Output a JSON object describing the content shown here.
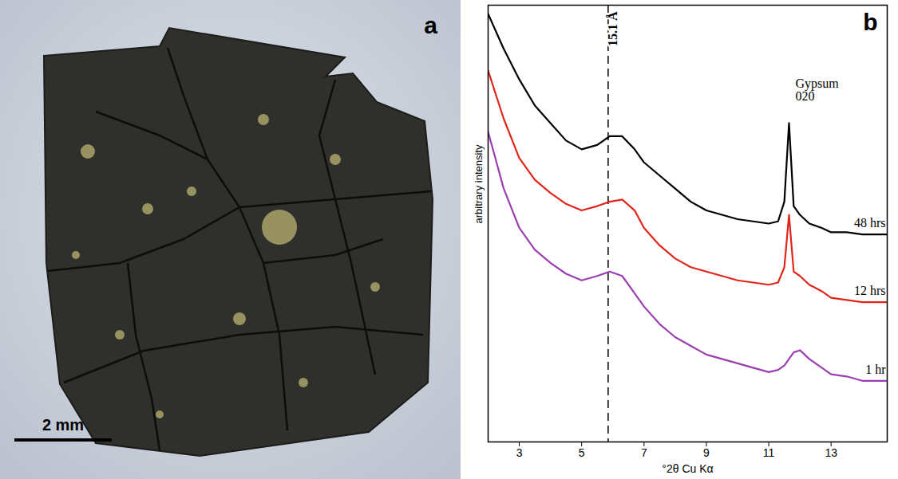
{
  "chart_data": {
    "type": "line",
    "panel_label": "b",
    "xlabel": "°2θ Cu Kα",
    "ylabel": "arbitrary intensity",
    "x": [
      2,
      2.5,
      3,
      3.5,
      4,
      4.5,
      5,
      5.5,
      5.9,
      6.3,
      6.7,
      7,
      7.5,
      8,
      8.5,
      9,
      9.5,
      10,
      10.5,
      11,
      11.3,
      11.5,
      11.65,
      11.8,
      12,
      12.3,
      12.7,
      13,
      13.5,
      14,
      14.8
    ],
    "series": [
      {
        "name": "48 hrs",
        "color": "#000000",
        "values": [
          98,
          90,
          83,
          77,
          73,
          69,
          67,
          68,
          70,
          70,
          67,
          64,
          61,
          58,
          55,
          53,
          52,
          51,
          50.5,
          50,
          50.5,
          55,
          73,
          54,
          52,
          50,
          49,
          48,
          48,
          47.5,
          47.5
        ]
      },
      {
        "name": "12 hrs",
        "color": "#e0261b",
        "values": [
          85,
          74,
          65,
          60,
          57,
          54.5,
          53,
          54,
          55,
          55.5,
          53,
          49,
          45,
          42,
          40,
          39,
          38,
          37,
          36.5,
          36,
          36.5,
          40,
          52,
          39,
          38,
          36,
          34.5,
          33,
          32.5,
          32,
          32
        ]
      },
      {
        "name": "1 hr",
        "color": "#9b3fb0",
        "values": [
          71,
          58,
          49,
          44,
          41,
          38.5,
          37,
          38,
          39,
          38,
          34,
          31,
          27,
          24,
          22,
          20,
          19,
          18,
          17,
          16,
          16.5,
          17.5,
          19,
          20.5,
          21,
          19,
          17,
          15.5,
          15,
          14,
          14
        ]
      }
    ],
    "xlim": [
      2,
      14.8
    ],
    "xticks": [
      3,
      5,
      7,
      9,
      11,
      13
    ],
    "ylim": [
      0,
      100
    ],
    "tick_labels": "x",
    "annotations": [
      {
        "text": "15.1 Å",
        "x": 5.85,
        "line_style": "dashed"
      },
      {
        "text": "Gypsum\n020",
        "x": 11.65
      }
    ]
  },
  "photo": {
    "panel_label": "a",
    "scale_bar": "2 mm"
  }
}
